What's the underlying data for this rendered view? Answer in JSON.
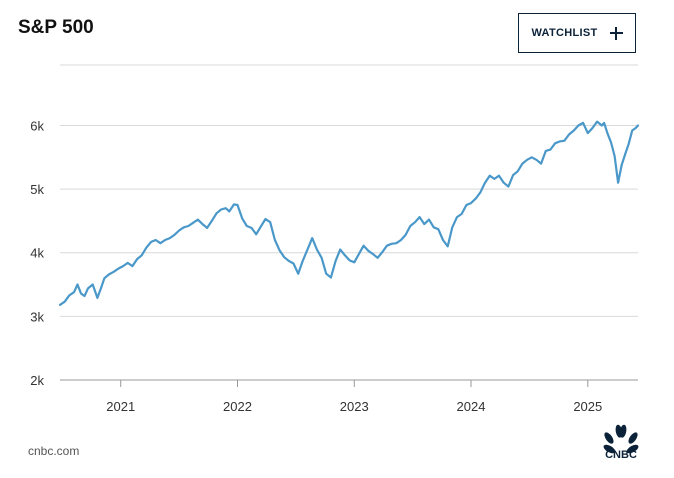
{
  "header": {
    "title": "S&P 500",
    "watchlist_label": "WATCHLIST",
    "watchlist_icon": "plus-icon"
  },
  "footer": {
    "source": "cnbc.com",
    "logo_text": "CNBC",
    "logo_icon": "peacock-icon"
  },
  "colors": {
    "line": "#4a98c9",
    "grid": "#d9d9d9",
    "axis": "#999999",
    "button_border": "#0b2239"
  },
  "chart_data": {
    "type": "line",
    "title": "S&P 500",
    "xlabel": "",
    "ylabel": "",
    "grid": true,
    "xlim": [
      2020.48,
      2025.43
    ],
    "ylim": [
      2000,
      6950
    ],
    "x_ticks": [
      {
        "value": 2021,
        "label": "2021"
      },
      {
        "value": 2022,
        "label": "2022"
      },
      {
        "value": 2023,
        "label": "2023"
      },
      {
        "value": 2024,
        "label": "2024"
      },
      {
        "value": 2025,
        "label": "2025"
      }
    ],
    "y_ticks": [
      {
        "value": 2000,
        "label": "2k"
      },
      {
        "value": 3000,
        "label": "3k"
      },
      {
        "value": 4000,
        "label": "4k"
      },
      {
        "value": 5000,
        "label": "5k"
      },
      {
        "value": 6000,
        "label": "6k"
      }
    ],
    "series": [
      {
        "x": [
          2020.48,
          2020.52,
          2020.56,
          2020.6,
          2020.63,
          2020.66,
          2020.69,
          2020.72,
          2020.76,
          2020.8,
          2020.83,
          2020.86,
          2020.9,
          2020.94,
          2020.98,
          2021.02,
          2021.06,
          2021.1,
          2021.14,
          2021.18,
          2021.22,
          2021.26,
          2021.3,
          2021.34,
          2021.38,
          2021.42,
          2021.46,
          2021.5,
          2021.54,
          2021.58,
          2021.62,
          2021.66,
          2021.7,
          2021.74,
          2021.78,
          2021.82,
          2021.86,
          2021.9,
          2021.93,
          2021.97,
          2022.0,
          2022.04,
          2022.08,
          2022.12,
          2022.16,
          2022.2,
          2022.24,
          2022.28,
          2022.32,
          2022.36,
          2022.4,
          2022.44,
          2022.48,
          2022.52,
          2022.56,
          2022.6,
          2022.64,
          2022.68,
          2022.72,
          2022.76,
          2022.8,
          2022.84,
          2022.88,
          2022.92,
          2022.96,
          2023.0,
          2023.04,
          2023.08,
          2023.12,
          2023.16,
          2023.2,
          2023.24,
          2023.28,
          2023.32,
          2023.36,
          2023.4,
          2023.44,
          2023.48,
          2023.52,
          2023.56,
          2023.6,
          2023.64,
          2023.68,
          2023.72,
          2023.76,
          2023.8,
          2023.84,
          2023.88,
          2023.92,
          2023.96,
          2024.0,
          2024.04,
          2024.08,
          2024.12,
          2024.16,
          2024.2,
          2024.24,
          2024.28,
          2024.32,
          2024.36,
          2024.4,
          2024.44,
          2024.48,
          2024.52,
          2024.56,
          2024.6,
          2024.64,
          2024.68,
          2024.72,
          2024.76,
          2024.8,
          2024.84,
          2024.88,
          2024.92,
          2024.96,
          2025.0,
          2025.04,
          2025.08,
          2025.12,
          2025.14,
          2025.17,
          2025.2,
          2025.23,
          2025.26,
          2025.29,
          2025.32,
          2025.35,
          2025.38,
          2025.41,
          2025.43
        ],
        "y": [
          3180,
          3230,
          3330,
          3380,
          3500,
          3360,
          3320,
          3440,
          3500,
          3290,
          3440,
          3600,
          3660,
          3700,
          3750,
          3790,
          3840,
          3790,
          3900,
          3960,
          4080,
          4170,
          4200,
          4150,
          4200,
          4230,
          4280,
          4350,
          4400,
          4420,
          4470,
          4520,
          4450,
          4390,
          4500,
          4620,
          4680,
          4700,
          4650,
          4760,
          4750,
          4540,
          4420,
          4390,
          4290,
          4410,
          4530,
          4480,
          4200,
          4040,
          3930,
          3870,
          3830,
          3670,
          3880,
          4050,
          4230,
          4050,
          3920,
          3670,
          3610,
          3870,
          4050,
          3960,
          3880,
          3850,
          3980,
          4110,
          4030,
          3980,
          3920,
          4010,
          4110,
          4140,
          4150,
          4200,
          4280,
          4420,
          4480,
          4560,
          4450,
          4520,
          4400,
          4370,
          4200,
          4100,
          4400,
          4560,
          4610,
          4750,
          4780,
          4850,
          4950,
          5100,
          5210,
          5160,
          5210,
          5100,
          5040,
          5220,
          5280,
          5400,
          5460,
          5500,
          5460,
          5400,
          5600,
          5620,
          5720,
          5750,
          5760,
          5860,
          5920,
          6000,
          6040,
          5880,
          5960,
          6060,
          6000,
          6040,
          5870,
          5730,
          5520,
          5100,
          5380,
          5550,
          5710,
          5920,
          5960,
          6000
        ]
      }
    ]
  }
}
